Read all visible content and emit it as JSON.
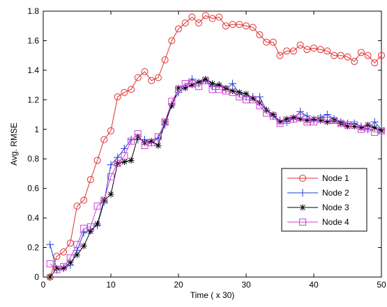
{
  "chart_data": {
    "type": "line",
    "title": "",
    "xlabel": "Time ( x 30)",
    "ylabel": "Avg. RMSE",
    "xlim": [
      0,
      50
    ],
    "ylim": [
      0,
      1.8
    ],
    "xticks": [
      0,
      10,
      20,
      30,
      40,
      50
    ],
    "yticks": [
      0,
      0.2,
      0.4,
      0.6,
      0.8,
      1,
      1.2,
      1.4,
      1.6,
      1.8
    ],
    "xtick_labels": [
      "0",
      "10",
      "20",
      "30",
      "40",
      "50"
    ],
    "ytick_labels": [
      "0",
      "0.2",
      "0.4",
      "0.6",
      "0.8",
      "1",
      "1.2",
      "1.4",
      "1.6",
      "1.8"
    ],
    "grid": false,
    "legend_position": "lower-right",
    "x": [
      1,
      2,
      3,
      4,
      5,
      6,
      7,
      8,
      9,
      10,
      11,
      12,
      13,
      14,
      15,
      16,
      17,
      18,
      19,
      20,
      21,
      22,
      23,
      24,
      25,
      26,
      27,
      28,
      29,
      30,
      31,
      32,
      33,
      34,
      35,
      36,
      37,
      38,
      39,
      40,
      41,
      42,
      43,
      44,
      45,
      46,
      47,
      48,
      49,
      50
    ],
    "series": [
      {
        "name": "Node 1",
        "color": "#e03030",
        "marker": "circle",
        "values": [
          0.0,
          0.14,
          0.17,
          0.23,
          0.48,
          0.52,
          0.66,
          0.79,
          0.93,
          0.99,
          1.22,
          1.25,
          1.27,
          1.35,
          1.39,
          1.33,
          1.35,
          1.47,
          1.6,
          1.68,
          1.72,
          1.76,
          1.72,
          1.77,
          1.75,
          1.76,
          1.7,
          1.71,
          1.71,
          1.7,
          1.69,
          1.64,
          1.59,
          1.59,
          1.5,
          1.53,
          1.53,
          1.57,
          1.54,
          1.55,
          1.54,
          1.53,
          1.5,
          1.5,
          1.49,
          1.46,
          1.52,
          1.5,
          1.45,
          1.5
        ]
      },
      {
        "name": "Node 2",
        "color": "#1f3fd8",
        "marker": "plus",
        "values": [
          0.22,
          0.05,
          0.06,
          0.08,
          0.18,
          0.3,
          0.32,
          0.35,
          0.51,
          0.76,
          0.81,
          0.87,
          0.93,
          0.93,
          0.93,
          0.91,
          0.94,
          1.03,
          1.17,
          1.25,
          1.29,
          1.34,
          1.31,
          1.33,
          1.29,
          1.3,
          1.27,
          1.31,
          1.24,
          1.22,
          1.22,
          1.22,
          1.13,
          1.09,
          1.06,
          1.05,
          1.07,
          1.12,
          1.09,
          1.06,
          1.08,
          1.1,
          1.07,
          1.05,
          1.04,
          1.04,
          1.02,
          1.0,
          1.05,
          1.0
        ]
      },
      {
        "name": "Node 3",
        "color": "#000000",
        "marker": "star",
        "values": [
          0.0,
          0.06,
          0.06,
          0.1,
          0.15,
          0.21,
          0.31,
          0.36,
          0.52,
          0.56,
          0.77,
          0.78,
          0.79,
          0.95,
          0.91,
          0.92,
          0.89,
          1.05,
          1.16,
          1.28,
          1.28,
          1.3,
          1.32,
          1.34,
          1.31,
          1.3,
          1.28,
          1.26,
          1.25,
          1.24,
          1.21,
          1.18,
          1.13,
          1.1,
          1.05,
          1.07,
          1.08,
          1.07,
          1.06,
          1.07,
          1.06,
          1.05,
          1.06,
          1.04,
          1.02,
          1.02,
          1.01,
          1.03,
          1.01,
          0.99
        ]
      },
      {
        "name": "Node 4",
        "color": "#d040d0",
        "marker": "square",
        "values": [
          0.09,
          0.05,
          0.07,
          0.13,
          0.22,
          0.33,
          0.34,
          0.48,
          0.52,
          0.68,
          0.77,
          0.82,
          0.92,
          0.97,
          0.89,
          0.91,
          0.95,
          1.05,
          1.19,
          1.27,
          1.31,
          1.31,
          1.29,
          1.33,
          1.27,
          1.27,
          1.26,
          1.25,
          1.22,
          1.2,
          1.2,
          1.16,
          1.11,
          1.09,
          1.04,
          1.06,
          1.07,
          1.08,
          1.05,
          1.05,
          1.07,
          1.06,
          1.06,
          1.04,
          1.03,
          1.03,
          1.0,
          1.01,
          0.98,
          0.99
        ]
      }
    ]
  }
}
